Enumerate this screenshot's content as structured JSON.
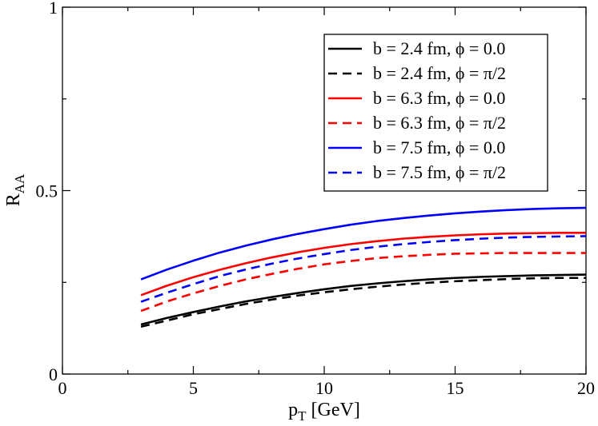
{
  "chart_data": {
    "type": "line",
    "title": "",
    "xlabel": {
      "main": "p",
      "sub": "T",
      "rest": " [GeV]"
    },
    "ylabel": {
      "main": "R",
      "sub": "AA"
    },
    "xlim": [
      0,
      20
    ],
    "ylim": [
      0,
      1
    ],
    "x_ticks": [
      {
        "value": 0,
        "label": "0"
      },
      {
        "value": 5,
        "label": "5"
      },
      {
        "value": 10,
        "label": "10"
      },
      {
        "value": 15,
        "label": "15"
      },
      {
        "value": 20,
        "label": "20"
      }
    ],
    "y_ticks": [
      {
        "value": 0,
        "label": "0"
      },
      {
        "value": 0.5,
        "label": "0.5"
      },
      {
        "value": 1,
        "label": "1"
      }
    ],
    "x_minor_step": 2.5,
    "y_minor_step": 0.25,
    "grid": false,
    "legend_position": "top-right",
    "series": [
      {
        "name": "b = 2.4 fm, ϕ = 0.0",
        "color": "#000000",
        "dashed": false,
        "x": [
          3,
          4,
          5,
          6,
          7,
          8,
          9,
          10,
          11,
          12,
          13,
          14,
          15,
          16,
          17,
          18,
          19,
          20
        ],
        "y": [
          0.135,
          0.153,
          0.169,
          0.184,
          0.198,
          0.21,
          0.221,
          0.231,
          0.24,
          0.247,
          0.253,
          0.258,
          0.262,
          0.265,
          0.267,
          0.269,
          0.27,
          0.271
        ]
      },
      {
        "name": "b = 2.4 fm, ϕ = π/2",
        "color": "#000000",
        "dashed": true,
        "x": [
          3,
          4,
          5,
          6,
          7,
          8,
          9,
          10,
          11,
          12,
          13,
          14,
          15,
          16,
          17,
          18,
          19,
          20
        ],
        "y": [
          0.129,
          0.146,
          0.163,
          0.177,
          0.191,
          0.203,
          0.214,
          0.223,
          0.231,
          0.238,
          0.244,
          0.249,
          0.253,
          0.256,
          0.259,
          0.261,
          0.262,
          0.262
        ]
      },
      {
        "name": "b = 6.3 fm, ϕ = 0.0",
        "color": "#ff0000",
        "dashed": false,
        "x": [
          3,
          4,
          5,
          6,
          7,
          8,
          9,
          10,
          11,
          12,
          13,
          14,
          15,
          16,
          17,
          18,
          19,
          20
        ],
        "y": [
          0.215,
          0.241,
          0.264,
          0.284,
          0.302,
          0.318,
          0.332,
          0.344,
          0.354,
          0.362,
          0.369,
          0.374,
          0.378,
          0.381,
          0.383,
          0.384,
          0.385,
          0.385
        ]
      },
      {
        "name": "b = 6.3 fm, ϕ = π/2",
        "color": "#ff0000",
        "dashed": true,
        "x": [
          3,
          4,
          5,
          6,
          7,
          8,
          9,
          10,
          11,
          12,
          13,
          14,
          15,
          16,
          17,
          18,
          19,
          20
        ],
        "y": [
          0.172,
          0.198,
          0.22,
          0.24,
          0.258,
          0.273,
          0.287,
          0.299,
          0.308,
          0.316,
          0.321,
          0.325,
          0.328,
          0.329,
          0.33,
          0.33,
          0.33,
          0.33
        ]
      },
      {
        "name": "b = 7.5 fm, ϕ = 0.0",
        "color": "#0000ff",
        "dashed": false,
        "x": [
          3,
          4,
          5,
          6,
          7,
          8,
          9,
          10,
          11,
          12,
          13,
          14,
          15,
          16,
          17,
          18,
          19,
          20
        ],
        "y": [
          0.258,
          0.285,
          0.309,
          0.331,
          0.35,
          0.367,
          0.382,
          0.395,
          0.407,
          0.417,
          0.425,
          0.432,
          0.438,
          0.443,
          0.447,
          0.45,
          0.452,
          0.453
        ]
      },
      {
        "name": "b = 7.5 fm, ϕ = π/2",
        "color": "#0000ff",
        "dashed": true,
        "x": [
          3,
          4,
          5,
          6,
          7,
          8,
          9,
          10,
          11,
          12,
          13,
          14,
          15,
          16,
          17,
          18,
          19,
          20
        ],
        "y": [
          0.197,
          0.222,
          0.245,
          0.267,
          0.285,
          0.301,
          0.315,
          0.327,
          0.338,
          0.347,
          0.354,
          0.36,
          0.365,
          0.369,
          0.372,
          0.374,
          0.375,
          0.376
        ]
      }
    ]
  }
}
